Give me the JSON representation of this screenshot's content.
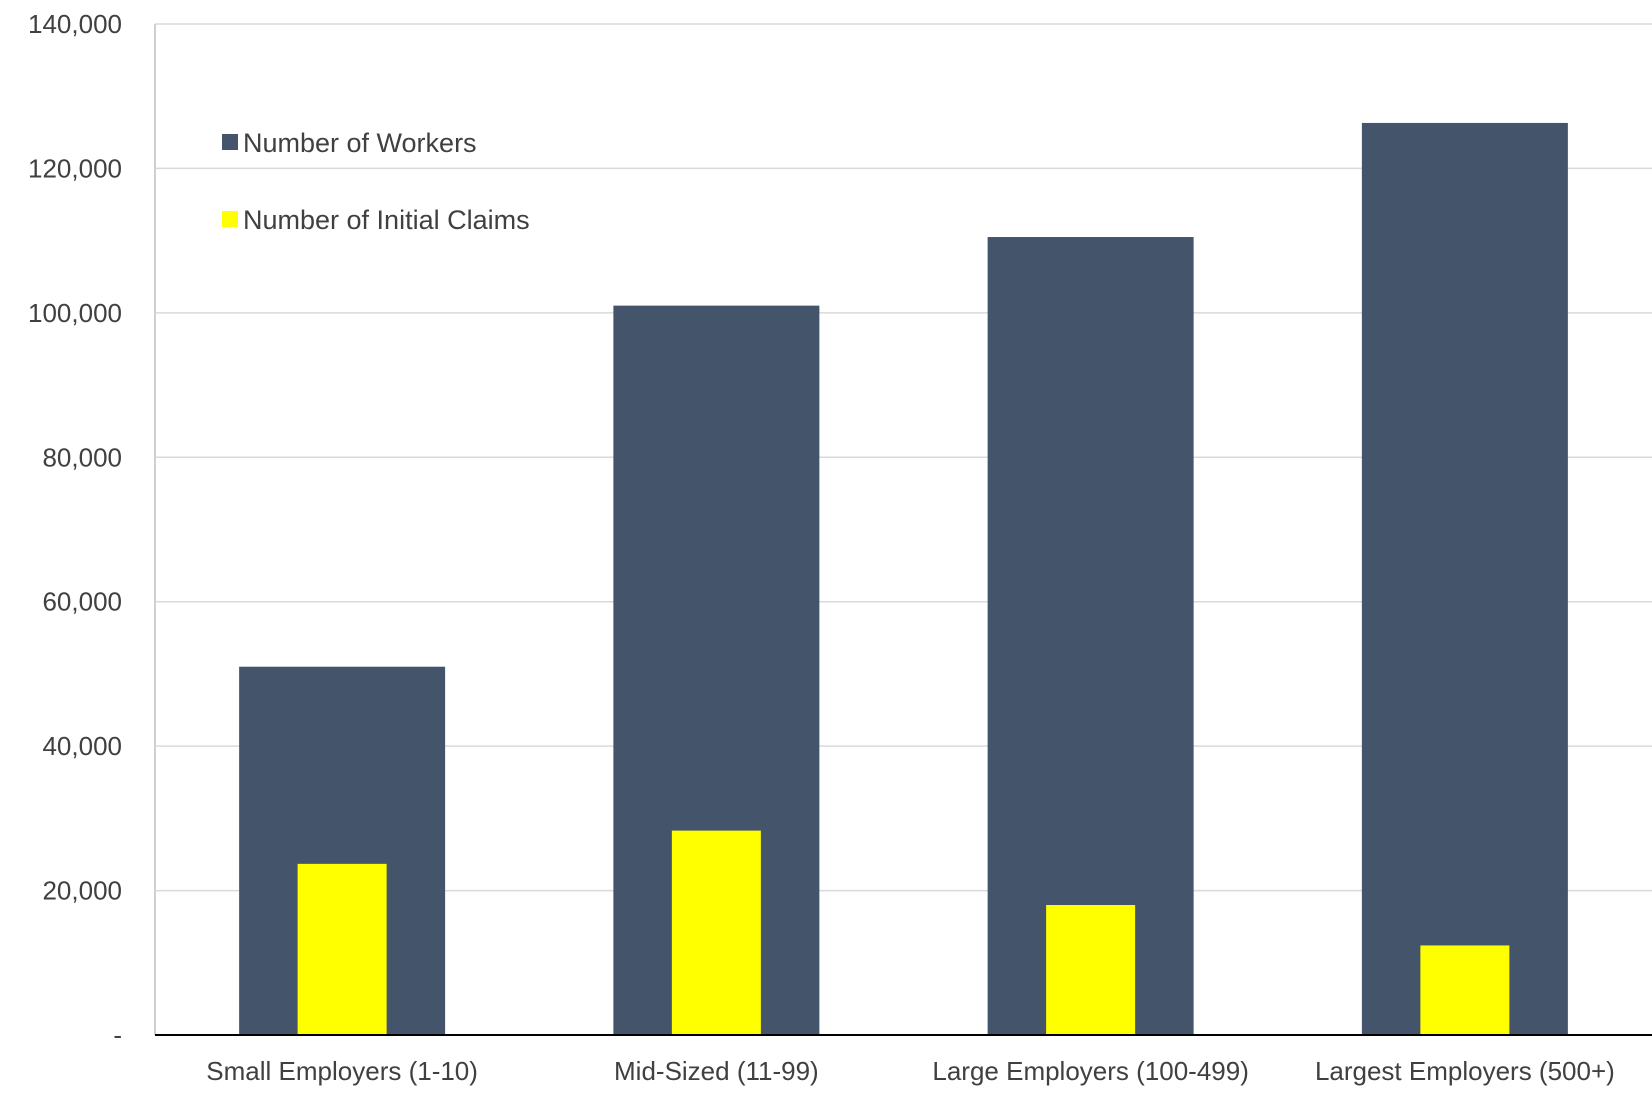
{
  "chart_data": {
    "type": "bar",
    "categories": [
      "Small Employers (1-10)",
      "Mid-Sized (11-99)",
      "Large Employers (100-499)",
      "Largest Employers (500+)"
    ],
    "series": [
      {
        "name": "Number of Workers",
        "color": "#44546a",
        "values": [
          51000,
          101000,
          110500,
          126300
        ]
      },
      {
        "name": "Number of Initial Claims",
        "color": "#ffff00",
        "values": [
          23700,
          28300,
          18000,
          12400
        ]
      }
    ],
    "ylim": [
      0,
      140000
    ],
    "yticks": [
      {
        "value": 0,
        "label": "-"
      },
      {
        "value": 20000,
        "label": "20,000"
      },
      {
        "value": 40000,
        "label": "40,000"
      },
      {
        "value": 60000,
        "label": "60,000"
      },
      {
        "value": 80000,
        "label": "80,000"
      },
      {
        "value": 100000,
        "label": "100,000"
      },
      {
        "value": 120000,
        "label": "120,000"
      },
      {
        "value": 140000,
        "label": "140,000"
      }
    ],
    "grid": true,
    "legend": "top-left",
    "title": "",
    "xlabel": "",
    "ylabel": ""
  }
}
